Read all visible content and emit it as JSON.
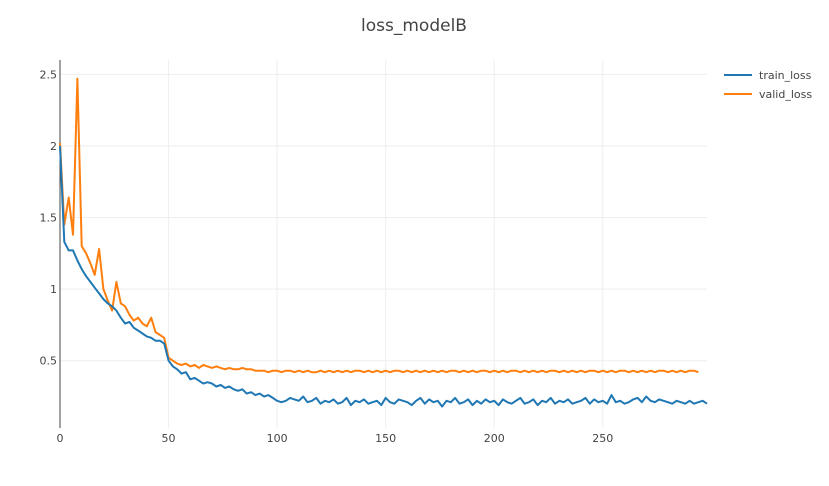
{
  "chart_data": {
    "type": "line",
    "title": "loss_modelB",
    "xlabel": "",
    "ylabel": "",
    "xlim": [
      0,
      298
    ],
    "ylim": [
      0.03,
      2.6
    ],
    "x_ticks": [
      0,
      50,
      100,
      150,
      200,
      250
    ],
    "y_ticks": [
      0.5,
      1,
      1.5,
      2,
      2.5
    ],
    "x_tick_labels": [
      "0",
      "50",
      "100",
      "150",
      "200",
      "250"
    ],
    "y_tick_labels": [
      "0.5",
      "1",
      "1.5",
      "2",
      "2.5"
    ],
    "grid": true,
    "legend_position": "top-right",
    "x_step": 2,
    "series": [
      {
        "name": "train_loss",
        "color": "#1f77b4",
        "values": [
          2.0,
          1.33,
          1.27,
          1.27,
          1.2,
          1.14,
          1.09,
          1.05,
          1.01,
          0.97,
          0.93,
          0.9,
          0.88,
          0.85,
          0.8,
          0.76,
          0.77,
          0.73,
          0.71,
          0.69,
          0.67,
          0.66,
          0.64,
          0.64,
          0.62,
          0.5,
          0.46,
          0.44,
          0.41,
          0.42,
          0.37,
          0.38,
          0.36,
          0.34,
          0.35,
          0.34,
          0.32,
          0.33,
          0.31,
          0.32,
          0.3,
          0.29,
          0.3,
          0.27,
          0.28,
          0.26,
          0.27,
          0.25,
          0.26,
          0.24,
          0.22,
          0.21,
          0.22,
          0.24,
          0.23,
          0.22,
          0.25,
          0.21,
          0.22,
          0.24,
          0.2,
          0.22,
          0.21,
          0.23,
          0.2,
          0.21,
          0.24,
          0.19,
          0.22,
          0.21,
          0.23,
          0.2,
          0.21,
          0.22,
          0.19,
          0.24,
          0.21,
          0.2,
          0.23,
          0.22,
          0.21,
          0.19,
          0.22,
          0.24,
          0.2,
          0.23,
          0.21,
          0.22,
          0.18,
          0.22,
          0.21,
          0.24,
          0.2,
          0.21,
          0.23,
          0.19,
          0.22,
          0.2,
          0.23,
          0.21,
          0.22,
          0.19,
          0.23,
          0.21,
          0.2,
          0.22,
          0.24,
          0.2,
          0.21,
          0.23,
          0.19,
          0.22,
          0.21,
          0.24,
          0.2,
          0.22,
          0.21,
          0.23,
          0.2,
          0.21,
          0.22,
          0.24,
          0.2,
          0.23,
          0.21,
          0.22,
          0.2,
          0.26,
          0.21,
          0.22,
          0.2,
          0.21,
          0.23,
          0.24,
          0.21,
          0.25,
          0.22,
          0.21,
          0.23,
          0.22,
          0.21,
          0.2,
          0.22,
          0.21,
          0.2,
          0.22,
          0.2,
          0.21,
          0.22,
          0.2
        ]
      },
      {
        "name": "valid_loss",
        "color": "#ff7f0e",
        "values": [
          2.02,
          1.45,
          1.64,
          1.38,
          2.47,
          1.3,
          1.25,
          1.18,
          1.1,
          1.28,
          1.0,
          0.92,
          0.85,
          1.05,
          0.9,
          0.88,
          0.82,
          0.78,
          0.8,
          0.76,
          0.74,
          0.8,
          0.7,
          0.68,
          0.66,
          0.52,
          0.5,
          0.48,
          0.47,
          0.48,
          0.46,
          0.47,
          0.45,
          0.47,
          0.46,
          0.45,
          0.46,
          0.45,
          0.44,
          0.45,
          0.44,
          0.44,
          0.45,
          0.44,
          0.44,
          0.43,
          0.43,
          0.43,
          0.42,
          0.43,
          0.43,
          0.42,
          0.43,
          0.43,
          0.42,
          0.43,
          0.42,
          0.43,
          0.42,
          0.42,
          0.43,
          0.42,
          0.43,
          0.42,
          0.43,
          0.42,
          0.43,
          0.42,
          0.43,
          0.43,
          0.42,
          0.43,
          0.42,
          0.43,
          0.42,
          0.43,
          0.42,
          0.43,
          0.43,
          0.42,
          0.43,
          0.42,
          0.43,
          0.42,
          0.43,
          0.42,
          0.43,
          0.42,
          0.43,
          0.42,
          0.43,
          0.43,
          0.42,
          0.43,
          0.42,
          0.43,
          0.42,
          0.43,
          0.43,
          0.42,
          0.43,
          0.42,
          0.43,
          0.42,
          0.43,
          0.43,
          0.42,
          0.43,
          0.42,
          0.43,
          0.42,
          0.43,
          0.42,
          0.43,
          0.43,
          0.42,
          0.43,
          0.42,
          0.43,
          0.42,
          0.43,
          0.42,
          0.43,
          0.43,
          0.42,
          0.43,
          0.42,
          0.43,
          0.42,
          0.43,
          0.43,
          0.42,
          0.43,
          0.42,
          0.43,
          0.42,
          0.43,
          0.42,
          0.43,
          0.43,
          0.42,
          0.43,
          0.42,
          0.43,
          0.42,
          0.43,
          0.43,
          0.42
        ]
      }
    ]
  }
}
